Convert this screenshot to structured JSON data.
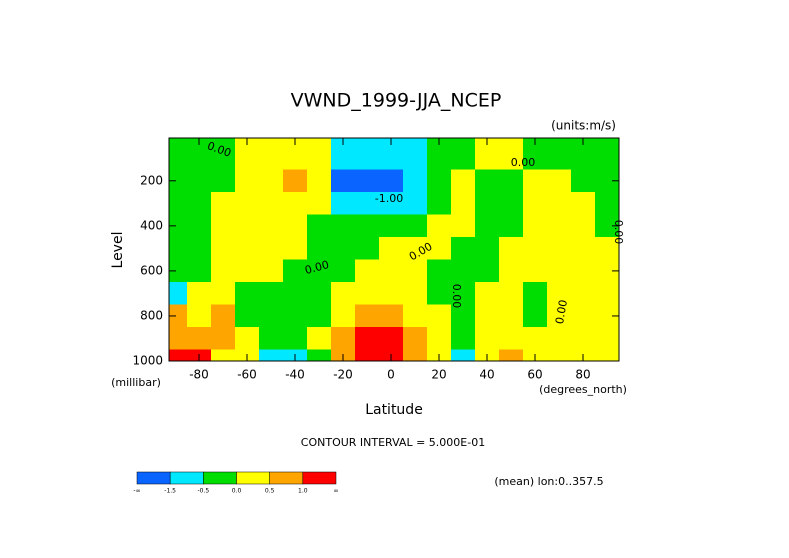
{
  "chart_data": {
    "type": "contour",
    "title": "VWND_1999-JJA_NCEP",
    "subtitle": "(units:m/s)",
    "x_label": "Latitude",
    "x_units": "(degrees_north)",
    "y_label": "Level",
    "y_units": "(millibar)",
    "contour_note": "CONTOUR INTERVAL = 5.000E-01",
    "footer_note": "(mean) lon:0..357.5",
    "x": [
      -90,
      -80,
      -70,
      -60,
      -50,
      -40,
      -30,
      -20,
      -10,
      0,
      10,
      20,
      30,
      40,
      50,
      60,
      70,
      80,
      90
    ],
    "y": [
      100,
      200,
      300,
      400,
      500,
      600,
      700,
      800,
      900,
      1000
    ],
    "z": [
      [
        -0.2,
        -0.2,
        -0.1,
        0.2,
        0.2,
        0.2,
        0.2,
        -1.0,
        -1.0,
        -1.0,
        -0.8,
        -0.2,
        -0.2,
        0.2,
        0.2,
        -0.1,
        -0.2,
        -0.2,
        -0.2
      ],
      [
        -0.2,
        -0.2,
        -0.1,
        0.2,
        0.2,
        0.6,
        0.2,
        -1.6,
        -2.0,
        -2.0,
        -1.2,
        -0.2,
        0.2,
        -0.2,
        -0.2,
        0.2,
        0.2,
        -0.2,
        -0.2
      ],
      [
        -0.2,
        -0.2,
        0.2,
        0.2,
        0.2,
        0.2,
        0.2,
        -0.8,
        -1.0,
        -1.0,
        -0.6,
        -0.2,
        0.2,
        -0.2,
        -0.2,
        0.2,
        0.2,
        0.2,
        -0.2
      ],
      [
        -0.2,
        -0.2,
        0.2,
        0.2,
        0.2,
        0.2,
        -0.2,
        -0.2,
        -0.2,
        -0.2,
        -0.2,
        0.2,
        0.2,
        -0.2,
        -0.2,
        0.2,
        0.2,
        0.2,
        -0.1
      ],
      [
        -0.2,
        -0.2,
        0.2,
        0.2,
        0.2,
        0.2,
        -0.2,
        -0.2,
        -0.2,
        0.2,
        0.2,
        0.2,
        -0.2,
        -0.2,
        0.2,
        0.2,
        0.2,
        0.2,
        0.2
      ],
      [
        -0.2,
        -0.2,
        0.2,
        0.2,
        0.2,
        -0.2,
        -0.2,
        -0.2,
        0.2,
        0.2,
        0.2,
        -0.2,
        -0.2,
        -0.2,
        0.2,
        0.2,
        0.2,
        0.2,
        0.2
      ],
      [
        -0.6,
        0.2,
        0.2,
        -0.2,
        -0.2,
        -0.2,
        -0.2,
        0.2,
        0.2,
        0.2,
        0.2,
        -0.2,
        -0.2,
        0.2,
        0.2,
        -0.2,
        0.2,
        0.2,
        0.2
      ],
      [
        0.7,
        0.2,
        0.6,
        -0.2,
        -0.2,
        -0.2,
        -0.2,
        0.2,
        0.6,
        0.6,
        0.2,
        0.2,
        -0.2,
        0.2,
        0.2,
        -0.2,
        0.2,
        0.2,
        0.2
      ],
      [
        0.8,
        0.6,
        0.6,
        0.2,
        -0.2,
        -0.2,
        0.2,
        0.6,
        1.2,
        1.2,
        0.6,
        0.2,
        -0.2,
        0.2,
        0.2,
        0.2,
        0.2,
        0.2,
        0.2
      ],
      [
        1.5,
        1.2,
        0.2,
        0.2,
        -1.0,
        -0.6,
        -0.2,
        0.8,
        1.5,
        1.5,
        0.8,
        0.2,
        -0.8,
        0.2,
        0.6,
        0.2,
        0.2,
        0.2,
        0.2
      ]
    ],
    "xlim": [
      -92.5,
      95
    ],
    "ylim": [
      10,
      1000
    ],
    "y_reversed": true,
    "xticks": [
      -80,
      -60,
      -40,
      -20,
      0,
      20,
      40,
      60,
      80
    ],
    "yticks": [
      200,
      400,
      600,
      800,
      1000
    ],
    "levels": [
      "-∞",
      -1.5,
      -0.5,
      {
        "value": 0,
        "label": "0.0"
      },
      0.5,
      {
        "value": 1,
        "label": "1.0"
      },
      "∞"
    ],
    "colors": [
      "#0a64ff",
      "#00e8ff",
      "#00dd00",
      "#ffff00",
      "#ffa500",
      "#ff0000"
    ],
    "annotations": [
      "0.00",
      "-1.00",
      "0.00",
      "0.00",
      "0.00",
      "0.00",
      "0.00",
      "0.00"
    ]
  }
}
